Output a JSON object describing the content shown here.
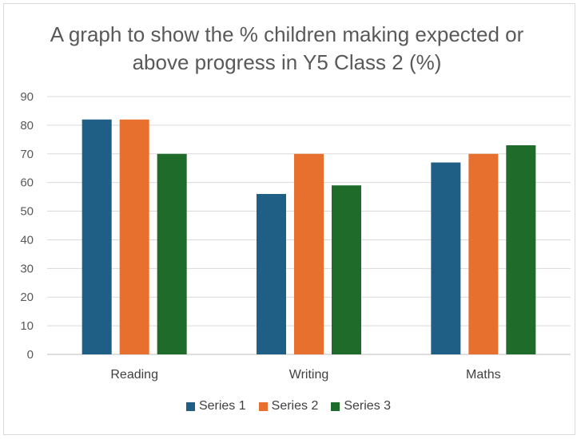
{
  "chart_data": {
    "type": "bar",
    "title_line1": "A graph to show the % children making expected or",
    "title_line2": "above progress in Y5 Class 2 (%)",
    "categories": [
      "Reading",
      "Writing",
      "Maths"
    ],
    "series": [
      {
        "name": "Series 1",
        "color": "#1f5f86",
        "values": [
          82,
          56,
          67
        ]
      },
      {
        "name": "Series 2",
        "color": "#e8702f",
        "values": [
          82,
          70,
          70
        ]
      },
      {
        "name": "Series 3",
        "color": "#1e6b2a",
        "values": [
          70,
          59,
          73
        ]
      }
    ],
    "ylim": [
      0,
      90
    ],
    "yticks": [
      "0",
      "10",
      "20",
      "30",
      "40",
      "50",
      "60",
      "70",
      "80",
      "90"
    ],
    "grid": true,
    "legend_position": "bottom",
    "xlabel": "",
    "ylabel": ""
  }
}
